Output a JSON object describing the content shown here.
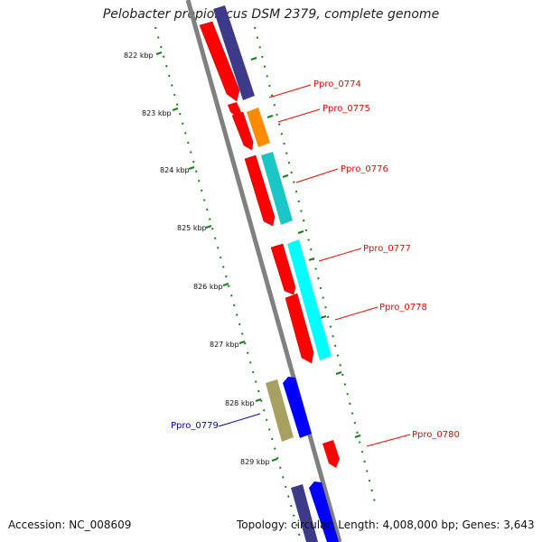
{
  "title": "Pelobacter propionicus DSM 2379, complete genome",
  "footer": {
    "accession": "Accession: NC_008609",
    "summary": "Topology: circular; Length: 4,008,000 bp; Genes: 3,643"
  },
  "ticks": [
    "822 kbp",
    "823 kbp",
    "824 kbp",
    "825 kbp",
    "826 kbp",
    "827 kbp",
    "828 kbp",
    "829 kbp"
  ],
  "gene_labels": [
    {
      "text": "Ppro_0774",
      "color": "#ff0000"
    },
    {
      "text": "Ppro_0775",
      "color": "#ff0000"
    },
    {
      "text": "Ppro_0776",
      "color": "#ff0000"
    },
    {
      "text": "Ppro_0777",
      "color": "#ff0000"
    },
    {
      "text": "Ppro_0778",
      "color": "#ff0000"
    },
    {
      "text": "Ppro_0779",
      "color": "#0000cc"
    },
    {
      "text": "Ppro_0780",
      "color": "#ff0000"
    }
  ],
  "colors": {
    "backbone": "#808080",
    "tick_green": "#1a7f1a",
    "gene_red": "#ff0000",
    "gene_orange": "#ff8c00",
    "gene_teal": "#1bc6c6",
    "gene_cyan": "#00ffff",
    "gene_navy": "#3d3a8a",
    "gene_blue": "#0000ff",
    "gene_olive": "#a8a060"
  }
}
